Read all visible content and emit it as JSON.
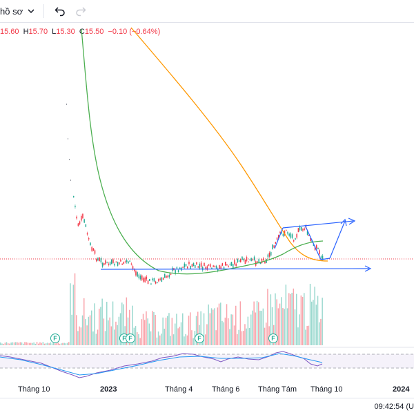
{
  "toolbar": {
    "profile_label": "hồ sơ",
    "undo_icon": "undo-icon",
    "redo_icon": "redo-icon"
  },
  "ohlc": {
    "open": "15.60",
    "high_key": "H",
    "high": "15.70",
    "low_key": "L",
    "low": "15.30",
    "close_key": "C",
    "close": "15.50",
    "change": "−0.10 (−0.64%)"
  },
  "earnings_marker": "F",
  "xaxis": {
    "labels": [
      {
        "text": "Tháng 10",
        "bold": false
      },
      {
        "text": "2023",
        "bold": true
      },
      {
        "text": "Tháng 4",
        "bold": false
      },
      {
        "text": "Tháng 6",
        "bold": false
      },
      {
        "text": "Tháng Tám",
        "bold": false
      },
      {
        "text": "Tháng 10",
        "bold": false
      },
      {
        "text": "2024",
        "bold": true
      }
    ]
  },
  "footer": {
    "clock": "09:42:54 (U"
  },
  "colors": {
    "up": "#22ab94",
    "down": "#f23645",
    "ma_fast": "#4caf50",
    "ma_slow": "#ff9800",
    "drawing": "#2962ff",
    "rsi": "#7e57c2"
  }
}
